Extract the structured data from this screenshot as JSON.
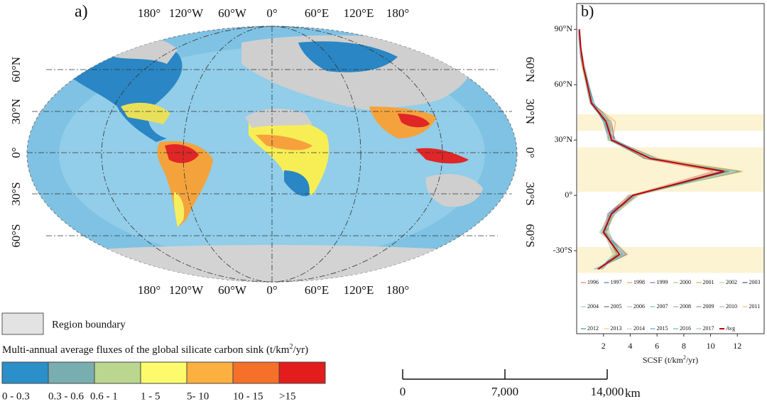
{
  "map_panel": {
    "label": "a)",
    "top_labels": [
      "180°",
      "120°W",
      "60°W",
      "0°",
      "60°E",
      "120°E",
      "180°"
    ],
    "bottom_labels": [
      "180°",
      "120°W",
      "60°W",
      "0°",
      "60°E",
      "120°E",
      "180°"
    ],
    "left_labels": [
      "60°N",
      "30°N",
      "0°",
      "30°S",
      "60°S"
    ],
    "right_labels": [
      "60°N",
      "30°N",
      "0°",
      "30°S",
      "60°S"
    ],
    "region_legend": "Region boundary",
    "flux_legend_title": {
      "text": "Multi-annual average fluxes of the global silicate carbon sink (t/km",
      "sup": "2",
      "tail": "/yr)"
    },
    "classes": [
      {
        "label": "0 - 0.3",
        "color": "#2b8fc9"
      },
      {
        "label": "0.3 - 0.6",
        "color": "#78aeb0"
      },
      {
        "label": "0.6 - 1",
        "color": "#bad68f"
      },
      {
        "label": "1 - 5",
        "color": "#fdfb6b"
      },
      {
        "label": "5- 10",
        "color": "#fbb03f"
      },
      {
        "label": "10 - 15",
        "color": "#f5712a"
      },
      {
        "label": ">15",
        "color": "#e31c1c"
      }
    ],
    "scale_bar": {
      "lim": [
        0,
        14000
      ],
      "ticks": [
        0,
        {
          "value": 7000,
          "label": "7,000"
        },
        {
          "value": 14000,
          "label": "14,000"
        }
      ],
      "unit": "km"
    }
  },
  "chart_data": {
    "type": "line",
    "label": "b)",
    "x_label": {
      "text": "SCSF (t/km",
      "sup": "2",
      "tail": "/yr)"
    },
    "orientation": "vertical",
    "x": [
      -40,
      -32,
      -20,
      -10,
      0,
      13,
      20,
      30,
      40,
      50,
      60,
      70,
      80,
      90
    ],
    "xlim": [
      -75,
      104
    ],
    "xticks": [
      {
        "value": 90,
        "label": "90°N"
      },
      {
        "value": 60,
        "label": "60°N"
      },
      {
        "value": 30,
        "label": "30°N"
      },
      {
        "value": 0,
        "label": "0°"
      },
      {
        "value": -30,
        "label": "-30°S"
      }
    ],
    "ylim": [
      0,
      14
    ],
    "yticks": [
      2,
      4,
      6,
      8,
      10,
      12
    ],
    "highlight_bands": [
      [
        35,
        44
      ],
      [
        2,
        26
      ],
      [
        -42,
        -28
      ]
    ],
    "band_color": "#fbf3d2",
    "series": [
      {
        "name": "1996",
        "color": "#e8787c",
        "values": [
          1.4,
          3.5,
          1.8,
          2.4,
          4.0,
          10.2,
          5.0,
          2.8,
          2.5,
          1.0,
          0.7,
          0.5,
          0.3,
          0.2
        ]
      },
      {
        "name": "1997",
        "color": "#4a7fc1",
        "values": [
          1.8,
          2.9,
          2.2,
          2.8,
          4.5,
          11.8,
          5.8,
          2.4,
          2.0,
          1.2,
          0.9,
          0.6,
          0.3,
          0.2
        ]
      },
      {
        "name": "1998",
        "color": "#f4a340",
        "values": [
          1.5,
          3.8,
          2.1,
          2.3,
          3.9,
          12.4,
          6.1,
          2.7,
          2.9,
          1.1,
          0.8,
          0.4,
          0.3,
          0.1
        ]
      },
      {
        "name": "1999",
        "color": "#8e6bb8",
        "values": [
          1.7,
          3.1,
          1.9,
          2.7,
          4.4,
          10.8,
          5.2,
          2.5,
          2.1,
          1.0,
          0.8,
          0.5,
          0.2,
          0.2
        ]
      },
      {
        "name": "2000",
        "color": "#9fd17a",
        "values": [
          1.3,
          3.4,
          2.3,
          2.5,
          4.1,
          11.3,
          5.6,
          2.9,
          2.3,
          1.3,
          0.9,
          0.6,
          0.3,
          0.2
        ]
      },
      {
        "name": "2001",
        "color": "#c7b840",
        "values": [
          1.9,
          2.8,
          2.0,
          2.9,
          4.6,
          10.5,
          5.4,
          2.6,
          2.4,
          1.1,
          0.7,
          0.5,
          0.3,
          0.2
        ]
      },
      {
        "name": "2002",
        "color": "#b8d98c",
        "values": [
          1.6,
          3.6,
          1.7,
          2.6,
          4.3,
          11.6,
          5.9,
          2.3,
          2.2,
          1.0,
          0.8,
          0.5,
          0.3,
          0.1
        ]
      },
      {
        "name": "2003",
        "color": "#2f5597",
        "values": [
          1.5,
          3.0,
          2.2,
          2.4,
          4.0,
          12.1,
          5.3,
          2.8,
          2.6,
          1.2,
          0.9,
          0.4,
          0.2,
          0.2
        ]
      },
      {
        "name": "2004",
        "color": "#9dc3e6",
        "values": [
          1.8,
          3.3,
          2.0,
          2.8,
          4.2,
          10.9,
          5.7,
          2.5,
          2.0,
          1.1,
          0.8,
          0.6,
          0.3,
          0.2
        ]
      },
      {
        "name": "2005",
        "color": "#7f6a5a",
        "values": [
          1.4,
          3.7,
          1.9,
          2.5,
          4.5,
          11.2,
          5.1,
          2.7,
          2.3,
          1.0,
          0.7,
          0.5,
          0.3,
          0.2
        ]
      },
      {
        "name": "2006",
        "color": "#a9c4d8",
        "values": [
          1.7,
          2.7,
          2.1,
          2.7,
          3.8,
          11.5,
          5.5,
          2.4,
          2.1,
          1.2,
          0.9,
          0.5,
          0.2,
          0.1
        ]
      },
      {
        "name": "2007",
        "color": "#7fb6d9",
        "values": [
          1.6,
          3.2,
          2.4,
          2.4,
          4.3,
          10.7,
          5.8,
          2.6,
          2.5,
          1.1,
          0.8,
          0.6,
          0.3,
          0.2
        ]
      },
      {
        "name": "2008",
        "color": "#8faadc",
        "values": [
          1.5,
          3.5,
          1.8,
          2.6,
          4.1,
          12.0,
          5.4,
          2.8,
          2.2,
          1.0,
          0.7,
          0.4,
          0.3,
          0.2
        ]
      },
      {
        "name": "2009",
        "color": "#8c9bb5",
        "values": [
          1.9,
          3.0,
          2.0,
          2.8,
          4.4,
          11.1,
          5.6,
          2.5,
          2.0,
          1.2,
          0.9,
          0.5,
          0.3,
          0.2
        ]
      },
      {
        "name": "2010",
        "color": "#c9a7d9",
        "values": [
          1.3,
          3.6,
          2.2,
          2.3,
          4.0,
          10.6,
          5.2,
          2.9,
          2.4,
          1.1,
          0.8,
          0.5,
          0.2,
          0.1
        ]
      },
      {
        "name": "2011",
        "color": "#e6c86e",
        "values": [
          1.7,
          3.1,
          1.9,
          2.7,
          4.6,
          11.7,
          6.0,
          2.4,
          2.3,
          1.0,
          0.8,
          0.6,
          0.3,
          0.2
        ]
      },
      {
        "name": "2012",
        "color": "#4e9a8f",
        "values": [
          1.6,
          3.4,
          2.1,
          2.5,
          4.2,
          11.4,
          5.5,
          2.6,
          2.1,
          1.2,
          0.9,
          0.5,
          0.3,
          0.2
        ]
      },
      {
        "name": "2013",
        "color": "#f6c66b",
        "values": [
          1.8,
          2.9,
          2.3,
          2.6,
          3.9,
          10.4,
          5.3,
          2.7,
          2.6,
          1.1,
          0.7,
          0.4,
          0.3,
          0.2
        ]
      },
      {
        "name": "2014",
        "color": "#bcd8ef",
        "values": [
          1.4,
          3.3,
          1.8,
          2.9,
          4.5,
          11.9,
          5.7,
          2.5,
          2.2,
          1.0,
          0.8,
          0.6,
          0.2,
          0.1
        ]
      },
      {
        "name": "2015",
        "color": "#5ba8d6",
        "values": [
          1.5,
          3.7,
          2.0,
          2.4,
          4.3,
          11.0,
          5.9,
          2.8,
          2.0,
          1.3,
          0.9,
          0.5,
          0.3,
          0.2
        ]
      },
      {
        "name": "2016",
        "color": "#6fb98f",
        "values": [
          1.7,
          3.0,
          2.2,
          2.7,
          4.1,
          12.2,
          5.1,
          2.4,
          2.4,
          1.1,
          0.8,
          0.5,
          0.3,
          0.2
        ]
      },
      {
        "name": "2017",
        "color": "#9ec9c0",
        "values": [
          1.6,
          3.5,
          1.9,
          2.5,
          4.4,
          10.8,
          5.6,
          2.6,
          2.3,
          1.0,
          0.7,
          0.5,
          0.3,
          0.2
        ]
      },
      {
        "name": "Avg",
        "color": "#c00000",
        "width": 2,
        "values": [
          1.6,
          3.2,
          2.0,
          2.6,
          4.2,
          11.0,
          5.5,
          2.6,
          2.2,
          1.1,
          0.8,
          0.5,
          0.3,
          0.2
        ]
      }
    ]
  }
}
